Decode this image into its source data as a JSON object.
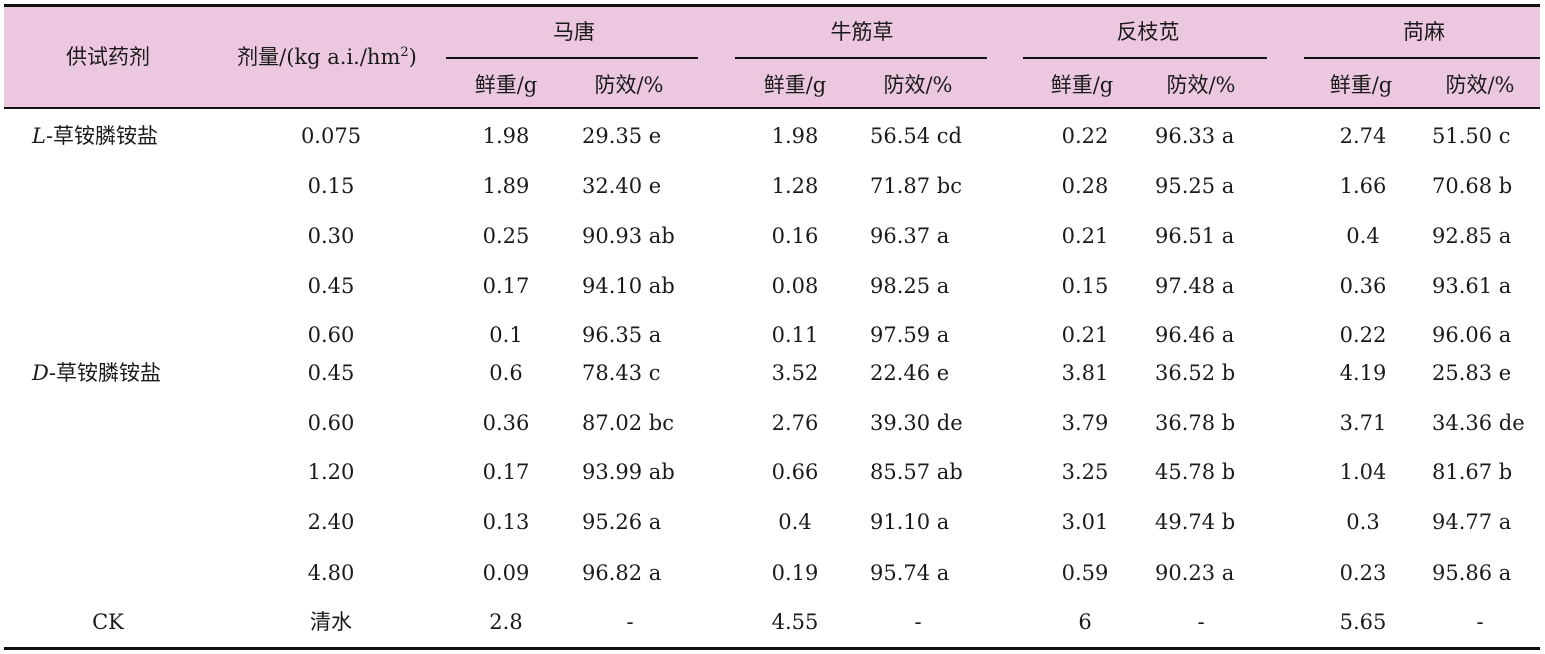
{
  "header": {
    "col_agent": "供试药剂",
    "col_dose_prefix": "剂量/(kg a.i./hm",
    "col_dose_sup": "2",
    "col_dose_suffix": ")",
    "groups": [
      "马唐",
      "牛筋草",
      "反枝苋",
      "苘麻"
    ],
    "sub_weight": "鲜重/g",
    "sub_effect": "防效/%"
  },
  "agents": {
    "l_prefix": "L",
    "l_name": "-草铵膦铵盐",
    "d_prefix": "D",
    "d_name": "-草铵膦铵盐",
    "ck": "CK"
  },
  "rows": [
    {
      "dose": "0.075",
      "v": [
        "1.98",
        "29.35 e",
        "1.98",
        "56.54 cd",
        "0.22",
        "96.33 a",
        "2.74",
        "51.50 c"
      ]
    },
    {
      "dose": "0.15",
      "v": [
        "1.89",
        "32.40 e",
        "1.28",
        "71.87 bc",
        "0.28",
        "95.25 a",
        "1.66",
        "70.68 b"
      ]
    },
    {
      "dose": "0.30",
      "v": [
        "0.25",
        "90.93 ab",
        "0.16",
        "96.37 a",
        "0.21",
        "96.51 a",
        "0.4",
        "92.85 a"
      ]
    },
    {
      "dose": "0.45",
      "v": [
        "0.17",
        "94.10 ab",
        "0.08",
        "98.25 a",
        "0.15",
        "97.48 a",
        "0.36",
        "93.61 a"
      ]
    },
    {
      "dose": "0.60",
      "v": [
        "0.1",
        "96.35 a",
        "0.11",
        "97.59 a",
        "0.21",
        "96.46 a",
        "0.22",
        "96.06 a"
      ]
    },
    {
      "dose": "0.45",
      "v": [
        "0.6",
        "78.43 c",
        "3.52",
        "22.46 e",
        "3.81",
        "36.52 b",
        "4.19",
        "25.83 e"
      ]
    },
    {
      "dose": "0.60",
      "v": [
        "0.36",
        "87.02 bc",
        "2.76",
        "39.30 de",
        "3.79",
        "36.78 b",
        "3.71",
        "34.36 de"
      ]
    },
    {
      "dose": "1.20",
      "v": [
        "0.17",
        "93.99 ab",
        "0.66",
        "85.57 ab",
        "3.25",
        "45.78 b",
        "1.04",
        "81.67 b"
      ]
    },
    {
      "dose": "2.40",
      "v": [
        "0.13",
        "95.26 a",
        "0.4",
        "91.10 a",
        "3.01",
        "49.74 b",
        "0.3",
        "94.77 a"
      ]
    },
    {
      "dose": "4.80",
      "v": [
        "0.09",
        "96.82 a",
        "0.19",
        "95.74 a",
        "0.59",
        "90.23 a",
        "0.23",
        "95.86 a"
      ]
    },
    {
      "dose": "清水",
      "v": [
        "2.8",
        "-",
        "4.55",
        "-",
        "6",
        "-",
        "5.65",
        "-"
      ]
    }
  ],
  "colors": {
    "header_bg": "#ebc8df",
    "rule": "#111111"
  }
}
